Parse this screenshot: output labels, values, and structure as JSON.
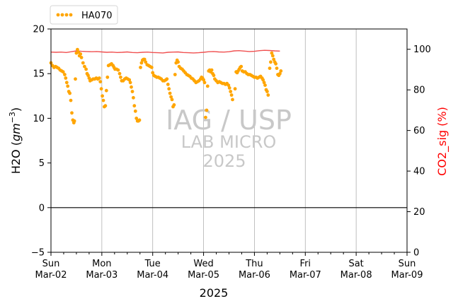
{
  "chart_data": {
    "type": "scatter",
    "title": "",
    "xlabel": "2025",
    "ylabel_left": "H2O (gm^-3)",
    "ylabel_left_base": "H2O (",
    "ylabel_left_unit": "gm",
    "ylabel_left_exp": "−3",
    "ylabel_left_close": ")",
    "ylabel_right": "CO2_sig (%)",
    "ylim_left": [
      -5,
      20
    ],
    "ylim_right": [
      0,
      110
    ],
    "yticks_left": [
      "−5",
      "0",
      "5",
      "10",
      "15",
      "20"
    ],
    "yticks_right": [
      "0",
      "20",
      "40",
      "60",
      "80",
      "100"
    ],
    "xlim": [
      "Sun Mar-02",
      "Sun Mar-09"
    ],
    "xticks": [
      {
        "day": "Sun",
        "date": "Mar-02"
      },
      {
        "day": "Mon",
        "date": "Mar-03"
      },
      {
        "day": "Tue",
        "date": "Mar-04"
      },
      {
        "day": "Wed",
        "date": "Mar-05"
      },
      {
        "day": "Thu",
        "date": "Mar-06"
      },
      {
        "day": "Fri",
        "date": "Mar-07"
      },
      {
        "day": "Sat",
        "date": "Mar-08"
      },
      {
        "day": "Sun",
        "date": "Mar-09"
      }
    ],
    "grid": "vertical",
    "legend_position": "top-left",
    "series": [
      {
        "name": "HA070",
        "axis": "left",
        "style": "dotted",
        "color": "#FFA500",
        "points": [
          [
            0.0,
            16.2
          ],
          [
            0.03,
            15.9
          ],
          [
            0.06,
            15.7
          ],
          [
            0.09,
            15.8
          ],
          [
            0.12,
            15.7
          ],
          [
            0.15,
            15.6
          ],
          [
            0.18,
            15.4
          ],
          [
            0.21,
            15.3
          ],
          [
            0.24,
            15.2
          ],
          [
            0.27,
            14.9
          ],
          [
            0.29,
            14.5
          ],
          [
            0.31,
            14.0
          ],
          [
            0.33,
            13.6
          ],
          [
            0.35,
            13.0
          ],
          [
            0.37,
            12.8
          ],
          [
            0.39,
            12.0
          ],
          [
            0.41,
            10.6
          ],
          [
            0.43,
            9.8
          ],
          [
            0.45,
            9.5
          ],
          [
            0.46,
            9.7
          ],
          [
            0.48,
            14.4
          ],
          [
            0.5,
            17.3
          ],
          [
            0.52,
            17.7
          ],
          [
            0.54,
            17.4
          ],
          [
            0.56,
            17.0
          ],
          [
            0.58,
            17.2
          ],
          [
            0.6,
            16.8
          ],
          [
            0.63,
            16.2
          ],
          [
            0.66,
            15.8
          ],
          [
            0.69,
            15.5
          ],
          [
            0.71,
            15.0
          ],
          [
            0.73,
            14.8
          ],
          [
            0.75,
            14.5
          ],
          [
            0.77,
            14.2
          ],
          [
            0.8,
            14.3
          ],
          [
            0.83,
            14.4
          ],
          [
            0.86,
            14.4
          ],
          [
            0.89,
            14.5
          ],
          [
            0.92,
            14.4
          ],
          [
            0.95,
            14.5
          ],
          [
            0.97,
            14.1
          ],
          [
            0.99,
            13.3
          ],
          [
            1.01,
            12.5
          ],
          [
            1.03,
            12.0
          ],
          [
            1.05,
            11.3
          ],
          [
            1.07,
            11.4
          ],
          [
            1.09,
            13.1
          ],
          [
            1.11,
            14.6
          ],
          [
            1.13,
            15.9
          ],
          [
            1.16,
            16.0
          ],
          [
            1.19,
            16.1
          ],
          [
            1.22,
            15.9
          ],
          [
            1.24,
            15.7
          ],
          [
            1.26,
            15.5
          ],
          [
            1.29,
            15.5
          ],
          [
            1.32,
            15.4
          ],
          [
            1.35,
            15.0
          ],
          [
            1.37,
            14.6
          ],
          [
            1.39,
            14.2
          ],
          [
            1.42,
            14.2
          ],
          [
            1.45,
            14.4
          ],
          [
            1.48,
            14.5
          ],
          [
            1.51,
            14.4
          ],
          [
            1.54,
            14.3
          ],
          [
            1.56,
            14.0
          ],
          [
            1.58,
            13.5
          ],
          [
            1.6,
            13.0
          ],
          [
            1.62,
            12.3
          ],
          [
            1.64,
            11.4
          ],
          [
            1.66,
            10.8
          ],
          [
            1.68,
            10.0
          ],
          [
            1.7,
            9.7
          ],
          [
            1.72,
            9.7
          ],
          [
            1.74,
            9.8
          ],
          [
            1.76,
            15.7
          ],
          [
            1.78,
            16.2
          ],
          [
            1.8,
            16.5
          ],
          [
            1.82,
            16.6
          ],
          [
            1.84,
            16.6
          ],
          [
            1.86,
            16.3
          ],
          [
            1.89,
            16.0
          ],
          [
            1.92,
            15.9
          ],
          [
            1.95,
            15.8
          ],
          [
            1.98,
            15.7
          ],
          [
            2.0,
            15.1
          ],
          [
            2.02,
            14.8
          ],
          [
            2.05,
            14.7
          ],
          [
            2.08,
            14.6
          ],
          [
            2.11,
            14.6
          ],
          [
            2.14,
            14.5
          ],
          [
            2.17,
            14.4
          ],
          [
            2.2,
            14.2
          ],
          [
            2.23,
            14.2
          ],
          [
            2.26,
            14.3
          ],
          [
            2.28,
            14.4
          ],
          [
            2.3,
            13.8
          ],
          [
            2.32,
            13.3
          ],
          [
            2.34,
            12.8
          ],
          [
            2.36,
            12.4
          ],
          [
            2.38,
            12.1
          ],
          [
            2.4,
            11.3
          ],
          [
            2.42,
            11.5
          ],
          [
            2.44,
            14.9
          ],
          [
            2.46,
            16.2
          ],
          [
            2.48,
            16.5
          ],
          [
            2.5,
            16.3
          ],
          [
            2.52,
            15.8
          ],
          [
            2.55,
            15.6
          ],
          [
            2.58,
            15.5
          ],
          [
            2.61,
            15.3
          ],
          [
            2.64,
            15.1
          ],
          [
            2.67,
            14.9
          ],
          [
            2.7,
            14.8
          ],
          [
            2.73,
            14.7
          ],
          [
            2.76,
            14.5
          ],
          [
            2.79,
            14.4
          ],
          [
            2.82,
            14.2
          ],
          [
            2.85,
            14.0
          ],
          [
            2.88,
            14.1
          ],
          [
            2.91,
            14.2
          ],
          [
            2.94,
            14.4
          ],
          [
            2.96,
            14.6
          ],
          [
            2.98,
            14.5
          ],
          [
            3.0,
            14.3
          ],
          [
            3.02,
            14.0
          ],
          [
            3.04,
            10.1
          ],
          [
            3.06,
            10.9
          ],
          [
            3.08,
            13.6
          ],
          [
            3.1,
            15.3
          ],
          [
            3.12,
            15.4
          ],
          [
            3.14,
            15.2
          ],
          [
            3.16,
            15.4
          ],
          [
            3.18,
            15.0
          ],
          [
            3.2,
            14.8
          ],
          [
            3.22,
            14.4
          ],
          [
            3.25,
            14.2
          ],
          [
            3.28,
            14.0
          ],
          [
            3.31,
            14.1
          ],
          [
            3.34,
            14.0
          ],
          [
            3.37,
            13.9
          ],
          [
            3.4,
            13.9
          ],
          [
            3.43,
            13.8
          ],
          [
            3.46,
            13.9
          ],
          [
            3.49,
            13.7
          ],
          [
            3.51,
            13.4
          ],
          [
            3.53,
            13.0
          ],
          [
            3.55,
            12.6
          ],
          [
            3.57,
            12.1
          ],
          [
            3.62,
            13.3
          ],
          [
            3.64,
            15.2
          ],
          [
            3.66,
            15.1
          ],
          [
            3.68,
            15.3
          ],
          [
            3.7,
            15.5
          ],
          [
            3.72,
            15.7
          ],
          [
            3.74,
            15.8
          ],
          [
            3.76,
            15.3
          ],
          [
            3.79,
            15.2
          ],
          [
            3.82,
            15.2
          ],
          [
            3.85,
            15.0
          ],
          [
            3.88,
            14.9
          ],
          [
            3.91,
            14.9
          ],
          [
            3.94,
            14.8
          ],
          [
            3.97,
            14.7
          ],
          [
            4.0,
            14.6
          ],
          [
            4.03,
            14.6
          ],
          [
            4.06,
            14.5
          ],
          [
            4.09,
            14.6
          ],
          [
            4.12,
            14.7
          ],
          [
            4.15,
            14.5
          ],
          [
            4.17,
            14.3
          ],
          [
            4.19,
            14.0
          ],
          [
            4.21,
            13.7
          ],
          [
            4.23,
            13.2
          ],
          [
            4.25,
            13.0
          ],
          [
            4.27,
            12.6
          ],
          [
            4.3,
            15.6
          ],
          [
            4.32,
            16.3
          ],
          [
            4.34,
            17.3
          ],
          [
            4.36,
            17.0
          ],
          [
            4.38,
            16.6
          ],
          [
            4.4,
            16.3
          ],
          [
            4.42,
            16.1
          ],
          [
            4.44,
            15.6
          ],
          [
            4.46,
            14.9
          ],
          [
            4.48,
            14.8
          ],
          [
            4.5,
            15.0
          ],
          [
            4.52,
            15.3
          ]
        ]
      },
      {
        "name": "CO2_sig",
        "axis": "right",
        "style": "line",
        "color": "#F05050",
        "points": [
          [
            0.0,
            98.6
          ],
          [
            0.1,
            98.5
          ],
          [
            0.2,
            98.6
          ],
          [
            0.3,
            98.4
          ],
          [
            0.4,
            98.8
          ],
          [
            0.5,
            99.2
          ],
          [
            0.6,
            99.0
          ],
          [
            0.7,
            98.9
          ],
          [
            0.8,
            98.8
          ],
          [
            0.9,
            98.9
          ],
          [
            1.0,
            98.7
          ],
          [
            1.1,
            98.5
          ],
          [
            1.2,
            98.6
          ],
          [
            1.3,
            98.4
          ],
          [
            1.4,
            98.5
          ],
          [
            1.5,
            98.7
          ],
          [
            1.6,
            98.4
          ],
          [
            1.7,
            98.3
          ],
          [
            1.8,
            98.5
          ],
          [
            1.9,
            98.6
          ],
          [
            2.0,
            98.4
          ],
          [
            2.1,
            98.3
          ],
          [
            2.2,
            98.2
          ],
          [
            2.3,
            98.5
          ],
          [
            2.4,
            98.6
          ],
          [
            2.5,
            98.7
          ],
          [
            2.6,
            98.4
          ],
          [
            2.7,
            98.3
          ],
          [
            2.8,
            98.2
          ],
          [
            2.9,
            98.3
          ],
          [
            3.0,
            98.5
          ],
          [
            3.1,
            98.8
          ],
          [
            3.2,
            98.9
          ],
          [
            3.3,
            98.7
          ],
          [
            3.4,
            98.6
          ],
          [
            3.5,
            98.8
          ],
          [
            3.6,
            99.2
          ],
          [
            3.7,
            99.3
          ],
          [
            3.8,
            99.1
          ],
          [
            3.9,
            98.9
          ],
          [
            4.0,
            99.0
          ],
          [
            4.1,
            99.3
          ],
          [
            4.2,
            99.5
          ],
          [
            4.3,
            99.4
          ],
          [
            4.4,
            99.2
          ],
          [
            4.5,
            99.1
          ]
        ]
      }
    ],
    "watermark": {
      "line1": "IAG / USP",
      "line2": "LAB MICRO",
      "line3": "2025"
    }
  }
}
